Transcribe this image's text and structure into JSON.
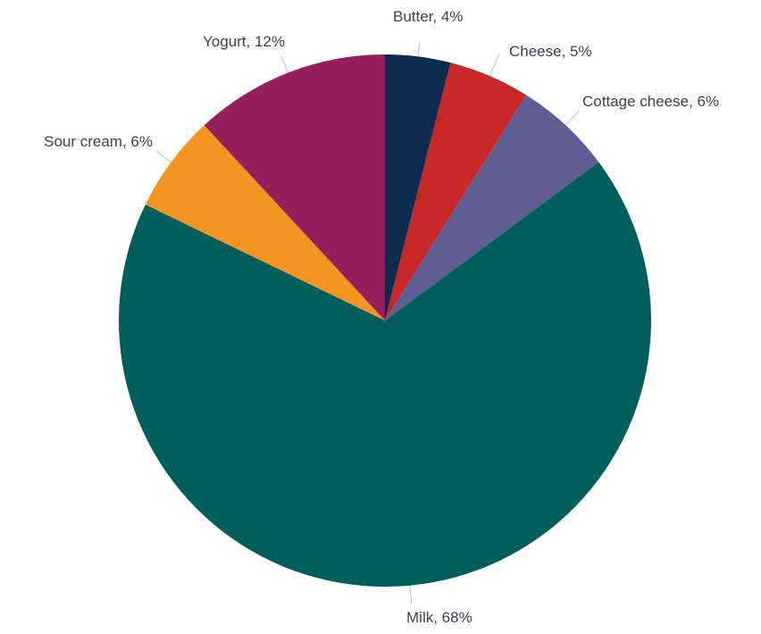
{
  "chart_data": {
    "type": "pie",
    "start_angle_deg": 0,
    "direction": "clockwise",
    "slices": [
      {
        "label": "Butter",
        "value": 4,
        "display": "Butter, 4%",
        "color": "#0d2a4f"
      },
      {
        "label": "Cheese",
        "value": 5,
        "display": "Cheese, 5%",
        "color": "#c62828"
      },
      {
        "label": "Cottage cheese",
        "value": 6,
        "display": "Cottage cheese, 6%",
        "color": "#5f5e93"
      },
      {
        "label": "Milk",
        "value": 68,
        "display": "Milk, 68%",
        "color": "#005f5d"
      },
      {
        "label": "Sour cream",
        "value": 6,
        "display": "Sour cream, 6%",
        "color": "#f59420"
      },
      {
        "label": "Yogurt",
        "value": 12,
        "display": "Yogurt, 12%",
        "color": "#961f5c"
      }
    ],
    "legend": "none",
    "labels": "outside with leader lines"
  }
}
